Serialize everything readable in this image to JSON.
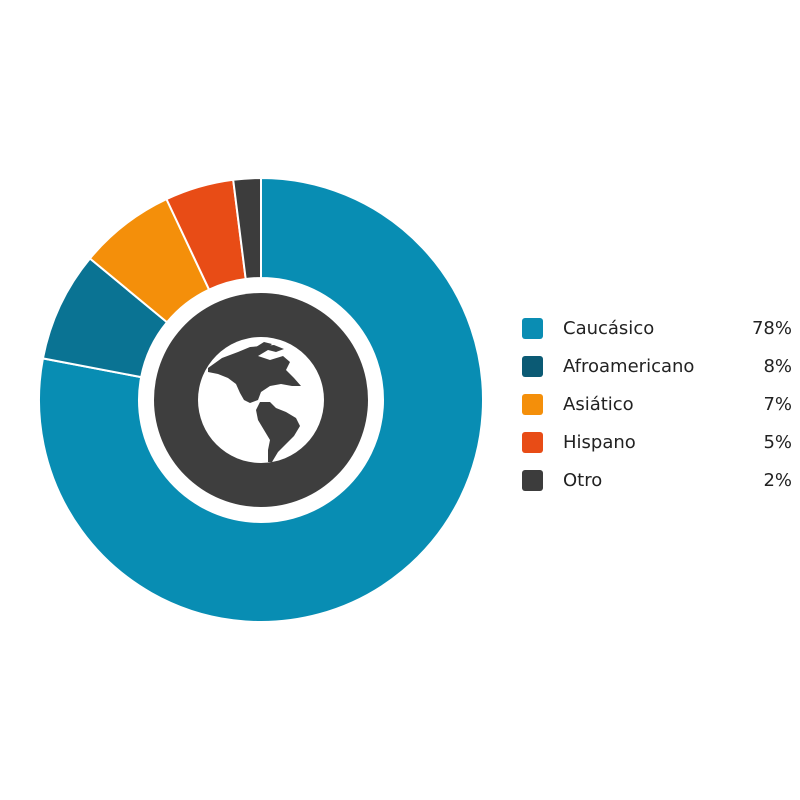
{
  "chart_data": {
    "type": "pie",
    "donut": true,
    "center_icon": "globe-americas-icon",
    "categories": [
      "Caucásico",
      "Afroamericano",
      "Asiático",
      "Hispano",
      "Otro"
    ],
    "values": [
      78,
      8,
      7,
      5,
      2
    ],
    "value_labels": [
      "78%",
      "8%",
      "7%",
      "5%",
      "2%"
    ],
    "colors": [
      "#088db3",
      "#0a7393",
      "#f48f0a",
      "#e84c16",
      "#3c3c3c"
    ],
    "legend_colors": [
      "#0a8db3",
      "#0b5a74",
      "#f48f0a",
      "#e84c16",
      "#3c3c3c"
    ],
    "legend_position": "right",
    "direction": "clockwise from top"
  }
}
